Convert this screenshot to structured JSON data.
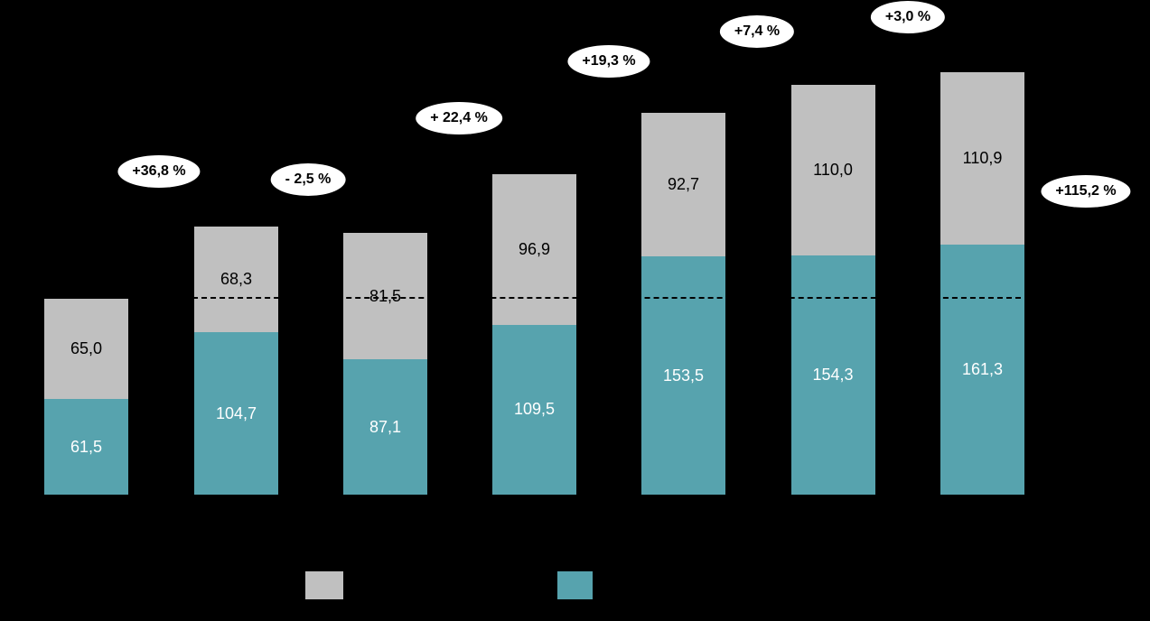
{
  "background_color": "#000000",
  "chart_data": {
    "type": "bar",
    "stacked": true,
    "orientation": "vertical",
    "axes_visible": false,
    "series": [
      {
        "name": "teal",
        "color": "#57a3ae",
        "label_color": "#ffffff",
        "values": [
          61.5,
          104.7,
          87.1,
          109.5,
          153.5,
          154.3,
          161.3
        ],
        "value_labels": [
          "61,5",
          "104,7",
          "87,1",
          "109,5",
          "153,5",
          "154,3",
          "161,3"
        ]
      },
      {
        "name": "gray",
        "color": "#c0c0c0",
        "label_color": "#000000",
        "values": [
          65.0,
          68.3,
          81.5,
          96.9,
          92.7,
          110.0,
          110.9
        ],
        "value_labels": [
          "65,0",
          "68,3",
          "81,5",
          "96,9",
          "92,7",
          "110,0",
          "110,9"
        ]
      }
    ],
    "totals": [
      126.5,
      173.0,
      168.6,
      206.4,
      246.2,
      264.3,
      272.2
    ],
    "annotations": [
      "+36,8 %",
      "- 2,5 %",
      "+ 22,4 %",
      "+19,3 %",
      "+7,4 %",
      "+3,0 %",
      "+115,2 %"
    ],
    "reference_line": {
      "value": 126.5,
      "style": "dashed",
      "color": "#000000"
    },
    "legend": {
      "swatches": [
        {
          "name": "gray",
          "color": "#c0c0c0"
        },
        {
          "name": "teal",
          "color": "#57a3ae"
        }
      ]
    }
  }
}
